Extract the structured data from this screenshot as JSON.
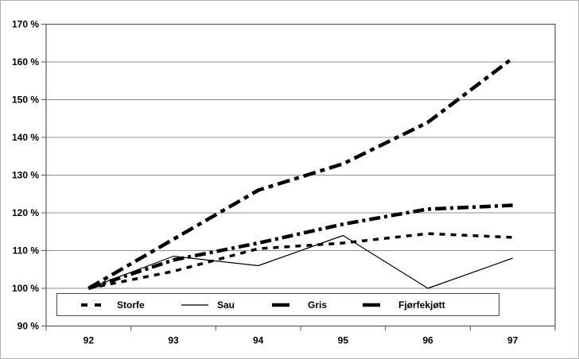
{
  "chart_data": {
    "type": "line",
    "title": "",
    "xlabel": "",
    "ylabel": "",
    "x_categories": [
      "92",
      "93",
      "94",
      "95",
      "96",
      "97"
    ],
    "y_tick_labels": [
      "90 %",
      "100 %",
      "110 %",
      "120 %",
      "130 %",
      "140 %",
      "150 %",
      "160 %",
      "170 %"
    ],
    "ylim": [
      90,
      170
    ],
    "y_step": 10,
    "grid": "horizontal",
    "legend_position": "bottom-box",
    "line_color": "#000000",
    "gridline_color": "#909090",
    "axis_color": "#595959",
    "background_color": "#ffffff",
    "series": [
      {
        "name": "Storfe",
        "style": "dash-medium",
        "values": [
          100,
          104.5,
          110.5,
          112,
          114.5,
          113.5
        ]
      },
      {
        "name": "Sau",
        "style": "solid-thin",
        "values": [
          100,
          108.5,
          106,
          114,
          100,
          108
        ]
      },
      {
        "name": "Gris",
        "style": "dash-dot-heavy",
        "values": [
          100,
          107.5,
          112,
          117,
          121,
          122
        ]
      },
      {
        "name": "Fjørfekjøtt",
        "style": "long-dash-heavy",
        "values": [
          100,
          113,
          126,
          133,
          144,
          161
        ]
      }
    ]
  }
}
